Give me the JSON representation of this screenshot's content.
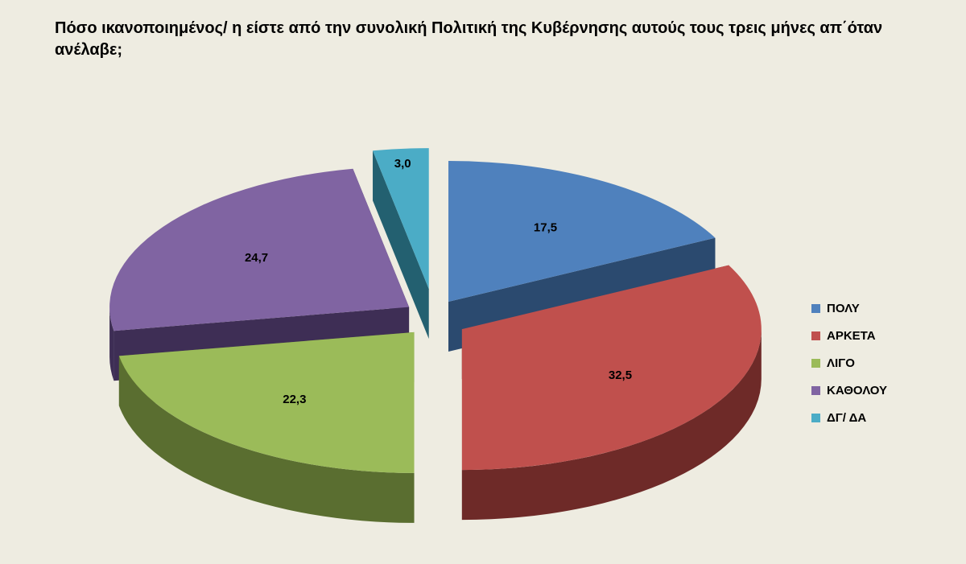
{
  "chart_data": {
    "type": "pie",
    "title": "Πόσο ικανοποιημένος/ η είστε από την συνολική Πολιτική της Κυβέρνησης αυτούς τους τρεις μήνες απ΄όταν ανέλαβε;",
    "categories": [
      "ΠΟΛΥ",
      "ΑΡΚΕΤΑ",
      "ΛΙΓΟ",
      "ΚΑΘΟΛΟΥ",
      "ΔΓ/ ΔΑ"
    ],
    "values": [
      17.5,
      32.5,
      22.3,
      24.7,
      3.0
    ],
    "value_labels": [
      "17,5",
      "32,5",
      "22,3",
      "24,7",
      "3,0"
    ],
    "colors": [
      "#4f81bd",
      "#c0504d",
      "#9bbb59",
      "#8064a2",
      "#4bacc6"
    ],
    "side_colors": [
      "#2b4a6f",
      "#6e2a28",
      "#5a6e30",
      "#3e2e55",
      "#236070"
    ],
    "legend_position": "right",
    "exploded": true,
    "three_d": true
  }
}
